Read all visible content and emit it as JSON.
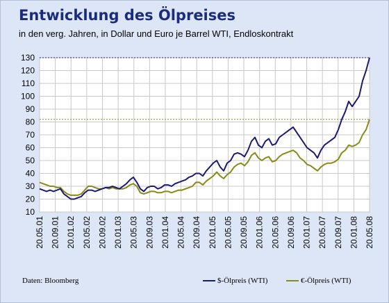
{
  "header": {
    "title": "Entwicklung des Ölpreises",
    "subtitle": "in den verg. Jahren, in Dollar und Euro je Barrel WTI, Endloskontrakt"
  },
  "footer": {
    "source": "Daten: Bloomberg"
  },
  "colors": {
    "background": "#dde6f6",
    "plot_background": "#ffffff",
    "title": "#1c2c7c",
    "usd": "#1a1a72",
    "eur": "#8a8a14",
    "grid": "#c8c8c8"
  },
  "chart_data": {
    "type": "line",
    "x_tick_labels": [
      "20.05.01",
      "20.09.01",
      "20.01.02",
      "20.05.02",
      "20.09.02",
      "20.01.03",
      "20.05.03",
      "20.09.03",
      "20.01.04",
      "20.05.04",
      "20.09.04",
      "20.01.05",
      "20.05.05",
      "20.09.05",
      "20.01.06",
      "20.05.06",
      "20.09.06",
      "20.01.07",
      "20.05.07",
      "20.09.07",
      "20.01.08",
      "20.05.08"
    ],
    "y_tick_labels": [
      "10",
      "20",
      "30",
      "40",
      "50",
      "60",
      "70",
      "80",
      "90",
      "100",
      "110",
      "120",
      "130"
    ],
    "ylim": [
      10,
      130
    ],
    "grid": true,
    "legend_position": "bottom-right",
    "reference_lines": [
      {
        "series": "$-Ölpreis (WTI)",
        "value": 130,
        "style": "dotted"
      },
      {
        "series": "€-Ölpreis (WTI)",
        "value": 82,
        "style": "dotted"
      }
    ],
    "series": [
      {
        "name": "$-Ölpreis (WTI)",
        "color": "#1a1a72",
        "values": [
          28,
          27,
          26,
          27,
          26,
          27,
          28,
          24,
          22,
          20,
          20,
          21,
          22,
          25,
          27,
          27,
          26,
          27,
          28,
          29,
          29,
          30,
          29,
          28,
          30,
          32,
          35,
          37,
          33,
          28,
          26,
          29,
          30,
          30,
          28,
          29,
          31,
          31,
          30,
          32,
          33,
          34,
          35,
          37,
          38,
          40,
          40,
          38,
          42,
          45,
          48,
          50,
          45,
          42,
          48,
          50,
          55,
          56,
          55,
          53,
          58,
          65,
          68,
          62,
          60,
          65,
          67,
          62,
          63,
          68,
          70,
          72,
          74,
          76,
          72,
          68,
          64,
          60,
          58,
          56,
          52,
          58,
          62,
          64,
          66,
          68,
          74,
          82,
          88,
          96,
          92,
          96,
          100,
          112,
          120,
          130
        ]
      },
      {
        "name": "€-Ölpreis (WTI)",
        "color": "#8a8a14",
        "values": [
          33,
          32,
          31,
          30,
          30,
          29,
          29,
          26,
          24,
          23,
          23,
          23,
          24,
          27,
          30,
          30,
          29,
          28,
          28,
          29,
          28,
          29,
          28,
          28,
          28,
          29,
          31,
          32,
          30,
          25,
          24,
          25,
          26,
          26,
          25,
          25,
          26,
          26,
          25,
          26,
          27,
          27,
          28,
          29,
          30,
          33,
          33,
          31,
          34,
          36,
          38,
          41,
          38,
          36,
          39,
          41,
          45,
          47,
          48,
          46,
          49,
          54,
          56,
          52,
          50,
          52,
          53,
          49,
          50,
          53,
          55,
          56,
          57,
          58,
          56,
          52,
          50,
          47,
          46,
          44,
          42,
          45,
          47,
          48,
          48,
          49,
          51,
          56,
          58,
          62,
          61,
          62,
          64,
          70,
          74,
          82
        ]
      }
    ]
  }
}
